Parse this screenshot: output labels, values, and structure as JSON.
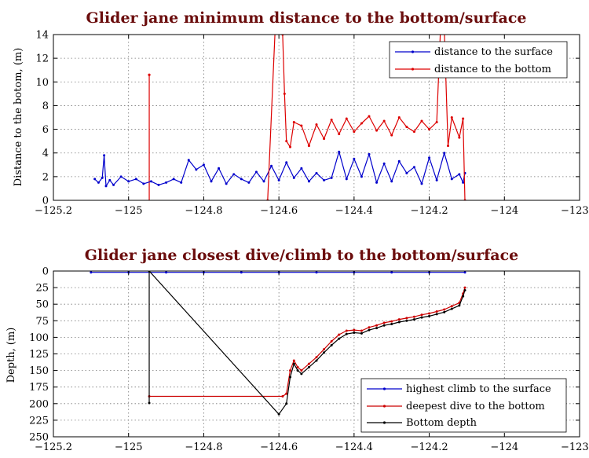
{
  "chart_data": [
    {
      "type": "line",
      "title": "Glider jane minimum distance to the bottom/surface",
      "ylabel": "Distance to the botom, (m)",
      "xlabel": "",
      "xlim": [
        -125.2,
        -123.8
      ],
      "ylim": [
        0,
        14
      ],
      "xticks": [
        -125.2,
        -125,
        -124.8,
        -124.6,
        -124.4,
        -124.2,
        -124,
        -123.8
      ],
      "xtick_labels": [
        "−125.2",
        "−125",
        "−124.8",
        "−124.6",
        "−124.4",
        "−124.2",
        "−124",
        "−123.8"
      ],
      "yticks": [
        0,
        2,
        4,
        6,
        8,
        10,
        12,
        14
      ],
      "ytick_labels": [
        "0",
        "2",
        "4",
        "6",
        "8",
        "10",
        "12",
        "14"
      ],
      "grid": true,
      "legend": "top-right",
      "series": [
        {
          "name": "distance to the surface",
          "color": "#0000cc",
          "x": [
            -125.09,
            -125.08,
            -125.07,
            -125.065,
            -125.06,
            -125.05,
            -125.04,
            -125.02,
            -125.0,
            -124.98,
            -124.96,
            -124.94,
            -124.92,
            -124.9,
            -124.88,
            -124.86,
            -124.84,
            -124.82,
            -124.8,
            -124.78,
            -124.76,
            -124.74,
            -124.72,
            -124.7,
            -124.68,
            -124.66,
            -124.64,
            -124.62,
            -124.6,
            -124.58,
            -124.56,
            -124.54,
            -124.52,
            -124.5,
            -124.48,
            -124.46,
            -124.44,
            -124.42,
            -124.4,
            -124.38,
            -124.36,
            -124.34,
            -124.32,
            -124.3,
            -124.28,
            -124.26,
            -124.24,
            -124.22,
            -124.2,
            -124.18,
            -124.16,
            -124.14,
            -124.12,
            -124.11,
            -124.105
          ],
          "y": [
            1.8,
            1.5,
            1.9,
            3.8,
            1.2,
            1.7,
            1.3,
            2.0,
            1.6,
            1.8,
            1.4,
            1.6,
            1.3,
            1.5,
            1.8,
            1.5,
            3.4,
            2.6,
            3.0,
            1.6,
            2.7,
            1.4,
            2.2,
            1.8,
            1.5,
            2.4,
            1.6,
            2.9,
            1.7,
            3.2,
            1.9,
            2.7,
            1.6,
            2.3,
            1.7,
            1.9,
            4.1,
            1.8,
            3.5,
            2.0,
            3.9,
            1.5,
            3.1,
            1.6,
            3.3,
            2.3,
            2.8,
            1.4,
            3.6,
            1.7,
            4.0,
            1.8,
            2.2,
            1.5,
            2.3
          ]
        },
        {
          "name": "distance to the bottom",
          "color": "#dd0000",
          "x": [
            -124.63,
            -124.61,
            -124.6,
            -124.59,
            -124.585,
            -124.58,
            -124.57,
            -124.56,
            -124.54,
            -124.52,
            -124.5,
            -124.48,
            -124.46,
            -124.44,
            -124.42,
            -124.4,
            -124.38,
            -124.36,
            -124.34,
            -124.32,
            -124.3,
            -124.28,
            -124.26,
            -124.24,
            -124.22,
            -124.2,
            -124.18,
            -124.17,
            -124.16,
            -124.15,
            -124.14,
            -124.12,
            -124.11,
            -124.105
          ],
          "y": [
            0,
            14.5,
            14.5,
            14.0,
            9.0,
            5.0,
            4.5,
            6.6,
            6.3,
            4.6,
            6.4,
            5.2,
            6.8,
            5.6,
            6.9,
            5.8,
            6.5,
            7.1,
            5.9,
            6.7,
            5.5,
            7.0,
            6.2,
            5.8,
            6.7,
            6.0,
            6.6,
            14.5,
            14.5,
            4.6,
            7.0,
            5.3,
            6.9,
            0
          ]
        }
      ],
      "annotations": [
        {
          "series": "distance to the bottom",
          "x": -124.945,
          "y_from": 0,
          "y_to": 10.6
        }
      ]
    },
    {
      "type": "line",
      "title": "Glider jane closest dive/climb to the bottom/surface",
      "ylabel": "Depth, (m)",
      "xlabel": "",
      "xlim": [
        -125.2,
        -123.8
      ],
      "ylim": [
        250,
        0
      ],
      "xticks": [
        -125.2,
        -125,
        -124.8,
        -124.6,
        -124.4,
        -124.2,
        -124,
        -123.8
      ],
      "xtick_labels": [
        "−125.2",
        "−125",
        "−124.8",
        "−124.6",
        "−124.4",
        "−124.2",
        "−124",
        "−123.8"
      ],
      "yticks": [
        0,
        25,
        50,
        75,
        100,
        125,
        150,
        175,
        200,
        225,
        250
      ],
      "ytick_labels": [
        "0",
        "25",
        "50",
        "75",
        "100",
        "125",
        "150",
        "175",
        "200",
        "225",
        "250"
      ],
      "grid": true,
      "legend": "bottom-right",
      "series": [
        {
          "name": "highest climb to the surface",
          "color": "#0000cc",
          "x": [
            -125.1,
            -125.0,
            -124.9,
            -124.8,
            -124.7,
            -124.6,
            -124.5,
            -124.4,
            -124.3,
            -124.2,
            -124.105
          ],
          "y": [
            2,
            2,
            2,
            2,
            2,
            2,
            2,
            2,
            2,
            2,
            2
          ]
        },
        {
          "name": "deepest dive to the bottom",
          "color": "#cc0000",
          "x": [
            -124.945,
            -124.59,
            -124.58,
            -124.57,
            -124.56,
            -124.55,
            -124.54,
            -124.52,
            -124.5,
            -124.48,
            -124.46,
            -124.44,
            -124.42,
            -124.4,
            -124.38,
            -124.36,
            -124.34,
            -124.32,
            -124.3,
            -124.28,
            -124.26,
            -124.24,
            -124.22,
            -124.2,
            -124.18,
            -124.16,
            -124.14,
            -124.12,
            -124.11,
            -124.105
          ],
          "y": [
            189,
            189,
            185,
            150,
            135,
            145,
            150,
            140,
            130,
            118,
            106,
            96,
            90,
            89,
            90,
            85,
            82,
            78,
            76,
            73,
            71,
            69,
            66,
            64,
            61,
            58,
            53,
            48,
            34,
            25
          ]
        },
        {
          "name": "Bottom depth",
          "color": "#000000",
          "x": [
            -124.945,
            -124.945,
            -124.6,
            -124.58,
            -124.57,
            -124.56,
            -124.55,
            -124.54,
            -124.52,
            -124.5,
            -124.48,
            -124.46,
            -124.44,
            -124.42,
            -124.4,
            -124.38,
            -124.36,
            -124.34,
            -124.32,
            -124.3,
            -124.28,
            -124.26,
            -124.24,
            -124.22,
            -124.2,
            -124.18,
            -124.16,
            -124.14,
            -124.12,
            -124.11,
            -124.105
          ],
          "y": [
            199,
            0,
            216,
            200,
            160,
            140,
            150,
            155,
            145,
            135,
            123,
            112,
            102,
            95,
            93,
            94,
            89,
            86,
            82,
            80,
            77,
            75,
            73,
            70,
            68,
            65,
            62,
            57,
            52,
            38,
            29
          ]
        }
      ]
    }
  ]
}
